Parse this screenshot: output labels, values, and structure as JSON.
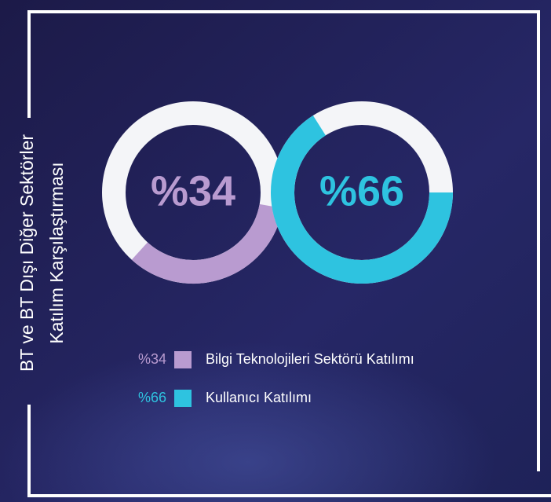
{
  "chart_data": {
    "type": "donut",
    "title": "BT ve BT Dışı Diğer Sektörler",
    "subtitle": "Katılım Karşılaştırması",
    "categories": [
      "Bilgi Teknolojileri Sektörü Katılımı",
      "Kullanıcı Katılımı"
    ],
    "values": [
      34,
      66
    ],
    "value_labels": [
      "%34",
      "%66"
    ],
    "colors": [
      "#b99bd0",
      "#2ec3e0"
    ],
    "track_color": "#f4f5f8"
  }
}
